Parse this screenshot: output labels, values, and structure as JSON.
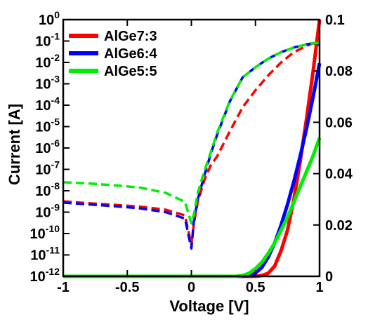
{
  "chart_data": {
    "type": "line",
    "xlabel": "Voltage [V]",
    "ylabel": "Current [A]",
    "xlim": [
      -1,
      1
    ],
    "ylim_left_log10": [
      -12,
      0
    ],
    "ylim_right": [
      0,
      0.1
    ],
    "left_axis_scale": "log",
    "right_axis_scale": "linear",
    "x_ticks": [
      "-1",
      "-0.5",
      "0",
      "0.5",
      "1"
    ],
    "x_tick_values": [
      -1,
      -0.5,
      0,
      0.5,
      1
    ],
    "left_ticks_exp": [
      "0",
      "-1",
      "-2",
      "-3",
      "-4",
      "-5",
      "-6",
      "-7",
      "-8",
      "-9",
      "-10",
      "-11",
      "-12"
    ],
    "left_tick_base": "10",
    "right_ticks": [
      "0",
      "0.02",
      "0.04",
      "0.06",
      "0.08",
      "0.1"
    ],
    "right_tick_values": [
      0,
      0.02,
      0.04,
      0.06,
      0.08,
      0.1
    ],
    "grid": false,
    "legend_position": "top-left",
    "series": [
      {
        "name": "AlGe7:3",
        "color": "#ff0000",
        "log_curve": {
          "x": [
            -1,
            -0.8,
            -0.6,
            -0.4,
            -0.2,
            -0.05,
            0.0,
            0.02,
            0.05,
            0.1,
            0.15,
            0.2,
            0.3,
            0.4,
            0.5,
            0.6,
            0.7,
            0.8,
            0.9,
            0.95,
            1.0
          ],
          "y": [
            3.2e-09,
            2.6e-09,
            2.2e-09,
            1.8e-09,
            1.3e-09,
            7e-10,
            3e-11,
            3e-10,
            3e-09,
            3e-08,
            1.5e-07,
            4e-07,
            6e-06,
            8e-05,
            0.0005,
            0.0025,
            0.01,
            0.03,
            0.06,
            0.08,
            0.06
          ]
        },
        "linear_curve": {
          "x": [
            -1,
            0.5,
            0.55,
            0.6,
            0.65,
            0.7,
            0.75,
            0.8,
            0.85,
            0.9,
            0.95,
            1.0
          ],
          "y": [
            0,
            0,
            0.0003,
            0.0012,
            0.004,
            0.01,
            0.018,
            0.03,
            0.045,
            0.062,
            0.08,
            0.1
          ]
        }
      },
      {
        "name": "AlGe6:4",
        "color": "#0000ff",
        "log_curve": {
          "x": [
            -1,
            -0.8,
            -0.6,
            -0.4,
            -0.2,
            -0.05,
            0.0,
            0.02,
            0.05,
            0.1,
            0.15,
            0.2,
            0.3,
            0.4,
            0.5,
            0.6,
            0.7,
            0.8,
            0.9,
            0.95,
            1.0
          ],
          "y": [
            2.8e-09,
            2.3e-09,
            1.9e-09,
            1.5e-09,
            1e-09,
            5e-10,
            2e-11,
            4e-10,
            4e-09,
            5e-08,
            5e-07,
            4e-06,
            0.00015,
            0.002,
            0.006,
            0.015,
            0.03,
            0.05,
            0.07,
            0.08,
            0.07
          ]
        },
        "linear_curve": {
          "x": [
            -1,
            0.4,
            0.45,
            0.5,
            0.55,
            0.6,
            0.65,
            0.7,
            0.75,
            0.8,
            0.85,
            0.9,
            0.95,
            1.0
          ],
          "y": [
            0,
            0,
            0.0003,
            0.0013,
            0.0035,
            0.0075,
            0.013,
            0.02,
            0.028,
            0.037,
            0.047,
            0.058,
            0.07,
            0.083
          ]
        }
      },
      {
        "name": "AlGe5:5",
        "color": "#00ee00",
        "log_curve": {
          "x": [
            -1,
            -0.8,
            -0.6,
            -0.4,
            -0.2,
            -0.05,
            0.0,
            0.02,
            0.05,
            0.1,
            0.15,
            0.2,
            0.3,
            0.4,
            0.5,
            0.6,
            0.7,
            0.8,
            0.9,
            0.95,
            1.0
          ],
          "y": [
            2.5e-08,
            2.2e-08,
            1.8e-08,
            1.4e-08,
            8e-09,
            3e-09,
            3e-10,
            8e-10,
            8e-09,
            8e-08,
            6e-07,
            5e-06,
            0.00016,
            0.002,
            0.006,
            0.015,
            0.03,
            0.05,
            0.07,
            0.08,
            0.08
          ]
        },
        "linear_curve": {
          "x": [
            -1,
            0.35,
            0.4,
            0.45,
            0.5,
            0.55,
            0.6,
            0.65,
            0.7,
            0.75,
            0.8,
            0.85,
            0.9,
            0.95,
            1.0
          ],
          "y": [
            0,
            0,
            0.0003,
            0.0012,
            0.003,
            0.0055,
            0.009,
            0.013,
            0.018,
            0.023,
            0.029,
            0.035,
            0.041,
            0.047,
            0.054
          ]
        }
      }
    ]
  }
}
